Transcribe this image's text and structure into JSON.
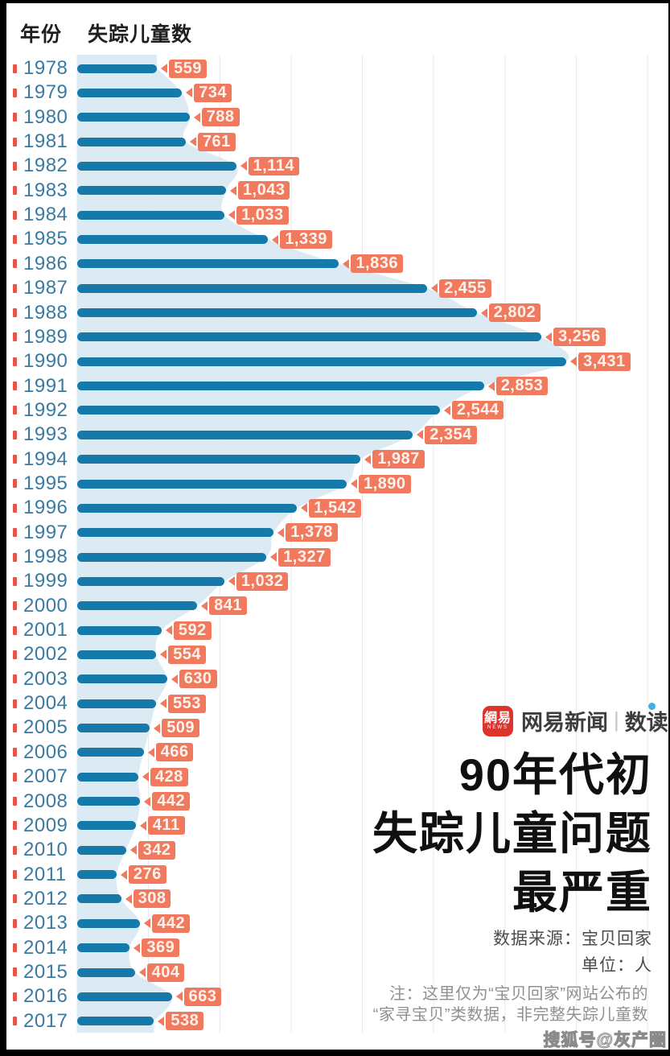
{
  "header": {
    "col_year": "年份",
    "col_count": "失踪儿童数"
  },
  "chart_data": {
    "type": "bar",
    "orientation": "horizontal",
    "title": "90年代初失踪儿童问题最严重",
    "categories": [
      "1978",
      "1979",
      "1980",
      "1981",
      "1982",
      "1983",
      "1984",
      "1985",
      "1986",
      "1987",
      "1988",
      "1989",
      "1990",
      "1991",
      "1992",
      "1993",
      "1994",
      "1995",
      "1996",
      "1997",
      "1998",
      "1999",
      "2000",
      "2001",
      "2002",
      "2003",
      "2004",
      "2005",
      "2006",
      "2007",
      "2008",
      "2009",
      "2010",
      "2011",
      "2012",
      "2013",
      "2014",
      "2015",
      "2016",
      "2017"
    ],
    "values": [
      559,
      734,
      788,
      761,
      1114,
      1043,
      1033,
      1339,
      1836,
      2455,
      2802,
      3256,
      3431,
      2853,
      2544,
      2354,
      1987,
      1890,
      1542,
      1378,
      1327,
      1032,
      841,
      592,
      554,
      630,
      553,
      509,
      466,
      428,
      442,
      411,
      342,
      276,
      308,
      442,
      369,
      404,
      663,
      538
    ],
    "xlim": [
      0,
      4000
    ],
    "gridline_step": 500,
    "grid": true,
    "legend": "none",
    "unit": "人",
    "ylabel": "年份",
    "xlabel": "失踪儿童数",
    "background_silhouette": "smoothed area tracing bar ends"
  },
  "branding": {
    "logo_text": "網易",
    "logo_sub": "NEWS",
    "brand_main": "网易新闻",
    "brand_sep": "|",
    "brand_suffix": "数读"
  },
  "title": {
    "line1": "90年代初",
    "line2": "失踪儿童问题",
    "line3": "最严重"
  },
  "source": {
    "line1": "数据来源：宝贝回家",
    "line2": "单位：人"
  },
  "note": {
    "line1": "注：这里仅为“宝贝回家”网站公布的",
    "line2": "“家寻宝贝”类数据，非完整失踪儿童数"
  },
  "watermark": {
    "text": "搜狐号@灰产圈"
  },
  "colors": {
    "bar": "#1579a9",
    "area_fill": "#d8e8f3",
    "gridline": "#e9e9e7",
    "year_text": "#3a7aa1",
    "year_tick": "#e2574a",
    "value_label_bg": "#f0795e",
    "value_label_text": "#fdf3ec",
    "title_text": "#101010",
    "brand_red": "#dd352e",
    "brand_blue_dot": "#3fb1e6",
    "source_text": "#4b4b4b",
    "note_text": "#909090",
    "frame": "#000000"
  }
}
